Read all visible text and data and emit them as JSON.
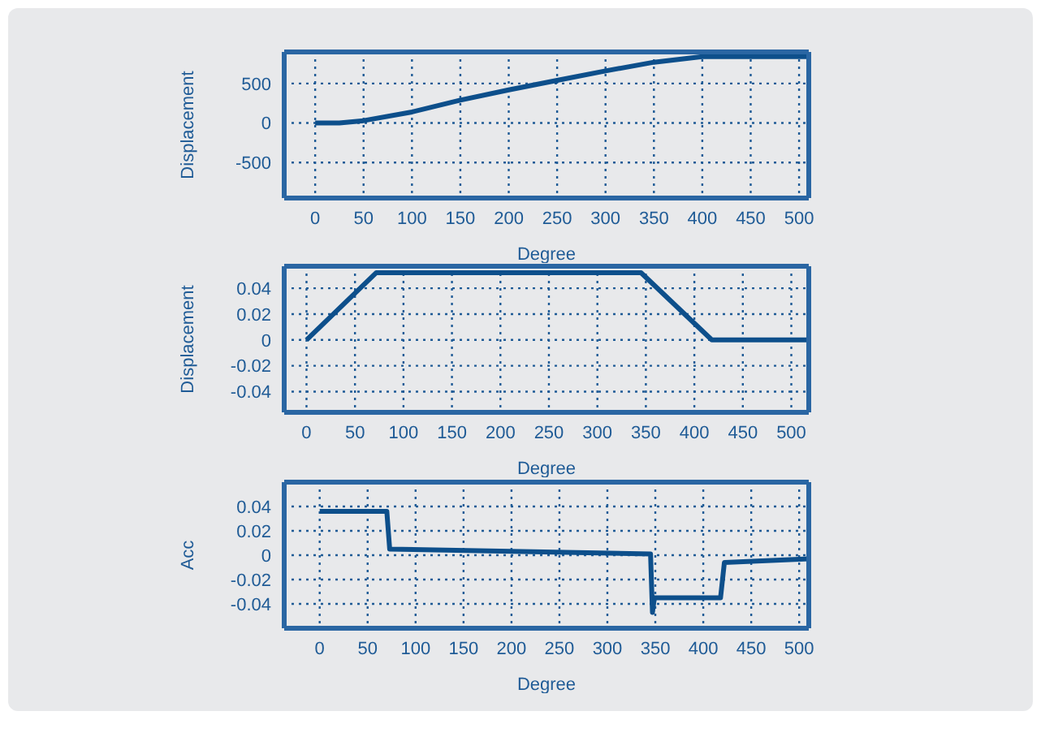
{
  "chart_data": [
    {
      "type": "line",
      "xlabel": "Degree",
      "ylabel": "Displacement",
      "x": [
        0,
        25,
        50,
        100,
        150,
        200,
        250,
        300,
        350,
        400,
        510
      ],
      "values": [
        0,
        0,
        30,
        140,
        290,
        420,
        540,
        660,
        770,
        840,
        840
      ],
      "color": "#0d4f8b",
      "xlim": [
        -32,
        510
      ],
      "xticks": [
        0,
        50,
        100,
        150,
        200,
        250,
        300,
        350,
        400,
        450,
        500
      ],
      "ylim": [
        -950,
        900
      ],
      "yticks": [
        -500,
        0,
        500
      ],
      "grid": true,
      "marker": "none",
      "line_style": "solid"
    },
    {
      "type": "line",
      "xlabel": "Degree",
      "ylabel": "Displacement",
      "x": [
        0,
        72,
        345,
        418,
        518
      ],
      "values": [
        0,
        0.052,
        0.052,
        0,
        0
      ],
      "color": "#0d4f8b",
      "xlim": [
        -23,
        518
      ],
      "xticks": [
        0,
        50,
        100,
        150,
        200,
        250,
        300,
        350,
        400,
        450,
        500
      ],
      "ylim": [
        -0.056,
        0.057
      ],
      "yticks": [
        -0.04,
        -0.02,
        0,
        0.02,
        0.04
      ],
      "grid": true,
      "marker": "none",
      "line_style": "solid"
    },
    {
      "type": "line",
      "xlabel": "Degree",
      "ylabel": "Acc",
      "x": [
        0,
        70,
        73,
        345,
        347,
        349,
        418,
        422,
        510
      ],
      "values": [
        0.036,
        0.036,
        0.005,
        0.001,
        -0.047,
        -0.035,
        -0.035,
        -0.006,
        -0.003
      ],
      "color": "#0d4f8b",
      "xlim": [
        -37,
        510
      ],
      "xticks": [
        0,
        50,
        100,
        150,
        200,
        250,
        300,
        350,
        400,
        450,
        500
      ],
      "ylim": [
        -0.06,
        0.06
      ],
      "yticks": [
        -0.04,
        -0.02,
        0,
        0.02,
        0.04
      ],
      "grid": true,
      "marker": "none",
      "line_style": "solid"
    }
  ]
}
